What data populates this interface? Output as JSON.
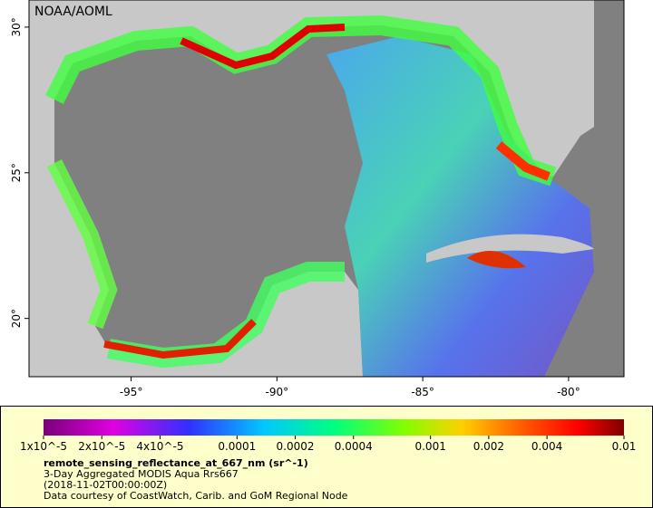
{
  "map": {
    "credit": "NOAA/AOML",
    "xlim": [
      -98.5,
      -78.1
    ],
    "ylim": [
      18,
      30.93
    ],
    "lon_ticks": [
      {
        "value": -95,
        "label": "-95°"
      },
      {
        "value": -90,
        "label": "-90°"
      },
      {
        "value": -85,
        "label": "-85°"
      },
      {
        "value": -80,
        "label": "-80°"
      }
    ],
    "lat_ticks": [
      {
        "value": 20,
        "label": "20°"
      },
      {
        "value": 25,
        "label": "25°"
      },
      {
        "value": 30,
        "label": "30°"
      }
    ]
  },
  "colorbar": {
    "scale": "log",
    "lim": [
      1e-05,
      0.01
    ],
    "ticks": [
      {
        "value": 1e-05,
        "label": "1x10^-5"
      },
      {
        "value": 2e-05,
        "label": "2x10^-5"
      },
      {
        "value": 4e-05,
        "label": "4x10^-5"
      },
      0.0001,
      0.0002,
      0.0004,
      0.001,
      0.002,
      0.004,
      0.01
    ]
  },
  "legend": {
    "variable": "remote_sensing_reflectance_at_667_nm (sr^-1)",
    "dataset": "3-Day Aggregated MODIS Aqua Rrs667",
    "time": "(2018-11-02T00:00:00Z)",
    "credit": "Data courtesy of CoastWatch, Carib. and GoM Regional Node"
  }
}
